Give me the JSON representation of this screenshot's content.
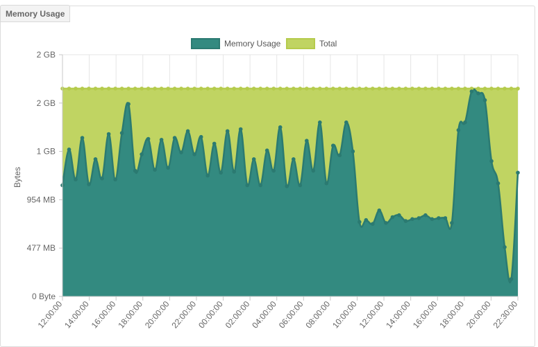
{
  "panel": {
    "title": "Memory Usage"
  },
  "chart_data": {
    "type": "area",
    "ylabel": "Bytes",
    "y_ticks": [
      {
        "label": "2 GB",
        "value": 2.5
      },
      {
        "label": "2 GB",
        "value": 2.0
      },
      {
        "label": "1 GB",
        "value": 1.5
      },
      {
        "label": "954 MB",
        "value": 1.0
      },
      {
        "label": "477 MB",
        "value": 0.5
      },
      {
        "label": "0 Byte",
        "value": 0
      }
    ],
    "ylim": [
      0,
      2.5
    ],
    "y_unit_note": "values in units of 477 MB (one labeled tick step)",
    "x_ticks": [
      "12:00:00",
      "14:00:00",
      "16:00:00",
      "18:00:00",
      "20:00:00",
      "22:00:00",
      "00:00:00",
      "02:00:00",
      "04:00:00",
      "06:00:00",
      "08:00:00",
      "10:00:00",
      "12:00:00",
      "14:00:00",
      "16:00:00",
      "18:00:00",
      "20:00:00",
      "22:30:00"
    ],
    "legend_position": "top-center",
    "grid": true,
    "colors": {
      "memory": "#338a80",
      "total": "#c0d462",
      "total_line": "#b5cb4c"
    },
    "series": [
      {
        "name": "Memory Usage",
        "values": [
          1.15,
          1.52,
          1.21,
          1.64,
          1.16,
          1.42,
          1.22,
          1.68,
          1.21,
          1.69,
          1.99,
          1.3,
          1.47,
          1.63,
          1.31,
          1.62,
          1.33,
          1.64,
          1.49,
          1.71,
          1.47,
          1.65,
          1.25,
          1.58,
          1.28,
          1.71,
          1.29,
          1.73,
          1.15,
          1.42,
          1.15,
          1.51,
          1.3,
          1.75,
          1.14,
          1.42,
          1.15,
          1.61,
          1.3,
          1.8,
          1.17,
          1.56,
          1.46,
          1.8,
          1.5,
          0.77,
          0.79,
          0.75,
          0.89,
          0.76,
          0.82,
          0.84,
          0.78,
          0.8,
          0.81,
          0.84,
          0.8,
          0.81,
          0.81,
          0.76,
          1.72,
          1.8,
          2.12,
          2.1,
          2.03,
          1.4,
          1.17,
          0.51,
          0.18,
          1.28
        ]
      },
      {
        "name": "Total",
        "values": [
          2.15,
          2.15,
          2.15,
          2.15,
          2.15,
          2.15,
          2.15,
          2.15,
          2.15,
          2.15,
          2.15,
          2.15,
          2.15,
          2.15,
          2.15,
          2.15,
          2.15,
          2.15,
          2.15,
          2.15,
          2.15,
          2.15,
          2.15,
          2.15,
          2.15,
          2.15,
          2.15,
          2.15,
          2.15,
          2.15,
          2.15,
          2.15,
          2.15,
          2.15,
          2.15,
          2.15,
          2.15,
          2.15,
          2.15,
          2.15,
          2.15,
          2.15,
          2.15,
          2.15,
          2.15,
          2.15,
          2.15,
          2.15,
          2.15,
          2.15,
          2.15,
          2.15,
          2.15,
          2.15,
          2.15,
          2.15,
          2.15,
          2.15,
          2.15,
          2.15,
          2.15,
          2.15,
          2.15,
          2.15,
          2.15,
          2.15,
          2.15,
          2.15,
          2.15,
          2.15
        ]
      }
    ]
  }
}
